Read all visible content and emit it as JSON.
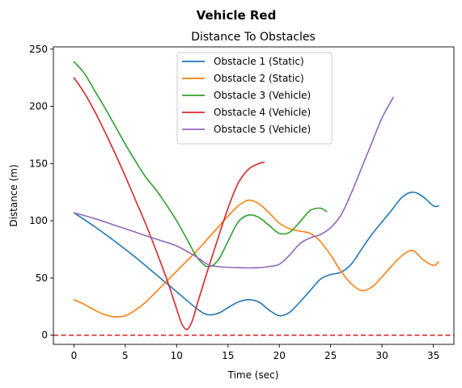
{
  "chart_data": {
    "type": "line",
    "suptitle": "Vehicle Red",
    "title": "Distance To Obstacles",
    "xlabel": "Time (sec)",
    "ylabel": "Distance (m)",
    "xlim": [
      -2,
      37
    ],
    "ylim": [
      -8,
      252
    ],
    "xticks": [
      0,
      5,
      10,
      15,
      20,
      25,
      30,
      35
    ],
    "yticks": [
      0,
      50,
      100,
      150,
      200,
      250
    ],
    "grid": false,
    "legend_position": "upper-center",
    "reference_line": {
      "y": 0,
      "color": "#d62728",
      "style": "dashed"
    },
    "series": [
      {
        "name": "Obstacle 1 (Static)",
        "color": "#1f77b4",
        "x": [
          0,
          2,
          4,
          6,
          8,
          10,
          12,
          13,
          14,
          15,
          16,
          17,
          18,
          19,
          20,
          21,
          22,
          23,
          24,
          25,
          26,
          27,
          28,
          29,
          30,
          31,
          32,
          33,
          34,
          35,
          35.5
        ],
        "y": [
          107,
          95,
          82,
          68,
          53,
          38,
          23,
          18,
          19,
          24,
          29,
          31,
          29,
          22,
          17,
          20,
          29,
          39,
          49,
          53,
          55,
          62,
          75,
          88,
          99,
          110,
          121,
          125,
          121,
          113,
          113
        ]
      },
      {
        "name": "Obstacle 2 (Static)",
        "color": "#ff7f0e",
        "x": [
          0,
          1,
          2,
          3,
          4,
          5,
          6,
          7,
          8,
          9,
          10,
          11,
          12,
          13,
          14,
          15,
          16,
          17,
          18,
          19,
          20,
          21,
          22,
          23,
          24,
          25,
          26,
          27,
          28,
          29,
          30,
          31,
          32,
          33,
          34,
          35,
          35.5
        ],
        "y": [
          31,
          27,
          22,
          18,
          16,
          17,
          22,
          29,
          38,
          47,
          56,
          65,
          74,
          84,
          94,
          104,
          113,
          118,
          115,
          107,
          98,
          93,
          91,
          89,
          82,
          70,
          56,
          45,
          39,
          42,
          51,
          61,
          70,
          74,
          66,
          61,
          64
        ]
      },
      {
        "name": "Obstacle 3 (Vehicle)",
        "color": "#2ca02c",
        "x": [
          0,
          1,
          2,
          3,
          4,
          5,
          6,
          7,
          8,
          9,
          10,
          11,
          12,
          13,
          14,
          15,
          16,
          17,
          18,
          19,
          20,
          21,
          22,
          23,
          24,
          24.6
        ],
        "y": [
          239,
          229,
          214,
          199,
          183,
          167,
          152,
          138,
          127,
          114,
          100,
          84,
          68,
          60,
          65,
          82,
          99,
          105,
          103,
          96,
          89,
          90,
          99,
          109,
          111,
          108
        ]
      },
      {
        "name": "Obstacle 4 (Vehicle)",
        "color": "#d62728",
        "x": [
          0,
          1,
          2,
          3,
          4,
          5,
          6,
          7,
          8,
          9,
          10,
          10.5,
          11,
          11.5,
          12,
          13,
          14,
          15,
          16,
          17,
          18,
          18.5
        ],
        "y": [
          225,
          212,
          196,
          178,
          159,
          139,
          118,
          97,
          74,
          50,
          23,
          10,
          5,
          12,
          27,
          56,
          84,
          111,
          133,
          145,
          150,
          151
        ]
      },
      {
        "name": "Obstacle 5 (Vehicle)",
        "color": "#9467bd",
        "x": [
          0,
          2,
          4,
          6,
          8,
          10,
          12,
          13,
          14,
          16,
          18,
          19,
          20,
          21,
          22,
          23,
          24,
          25,
          26,
          27,
          28,
          29,
          30,
          31.1
        ],
        "y": [
          107,
          102,
          96,
          90,
          84,
          78,
          68,
          62,
          60,
          59,
          59,
          60,
          62,
          70,
          80,
          85,
          88,
          94,
          105,
          124,
          146,
          168,
          190,
          208
        ]
      }
    ]
  }
}
